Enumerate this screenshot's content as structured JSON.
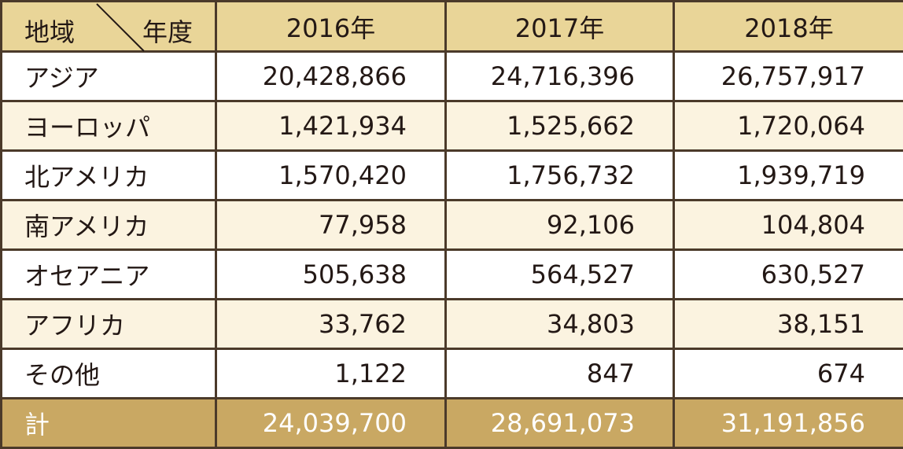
{
  "header": {
    "region_label": "地域",
    "year_label": "年度",
    "years": [
      "2016年",
      "2017年",
      "2018年"
    ]
  },
  "rows": [
    {
      "region": "アジア",
      "values": [
        "20,428,866",
        "24,716,396",
        "26,757,917"
      ]
    },
    {
      "region": "ヨーロッパ",
      "values": [
        "1,421,934",
        "1,525,662",
        "1,720,064"
      ]
    },
    {
      "region": "北アメリカ",
      "values": [
        "1,570,420",
        "1,756,732",
        "1,939,719"
      ]
    },
    {
      "region": "南アメリカ",
      "values": [
        "77,958",
        "92,106",
        "104,804"
      ]
    },
    {
      "region": "オセアニア",
      "values": [
        "505,638",
        "564,527",
        "630,527"
      ]
    },
    {
      "region": "アフリカ",
      "values": [
        "33,762",
        "34,803",
        "38,151"
      ]
    },
    {
      "region": "その他",
      "values": [
        "1,122",
        "847",
        "674"
      ]
    }
  ],
  "total": {
    "label": "計",
    "values": [
      "24,039,700",
      "28,691,073",
      "31,191,856"
    ]
  },
  "colors": {
    "header_bg": "#e9d598",
    "stripe_bg": "#fbf3e0",
    "total_bg": "#c9a863",
    "border": "#4b3a2a"
  }
}
